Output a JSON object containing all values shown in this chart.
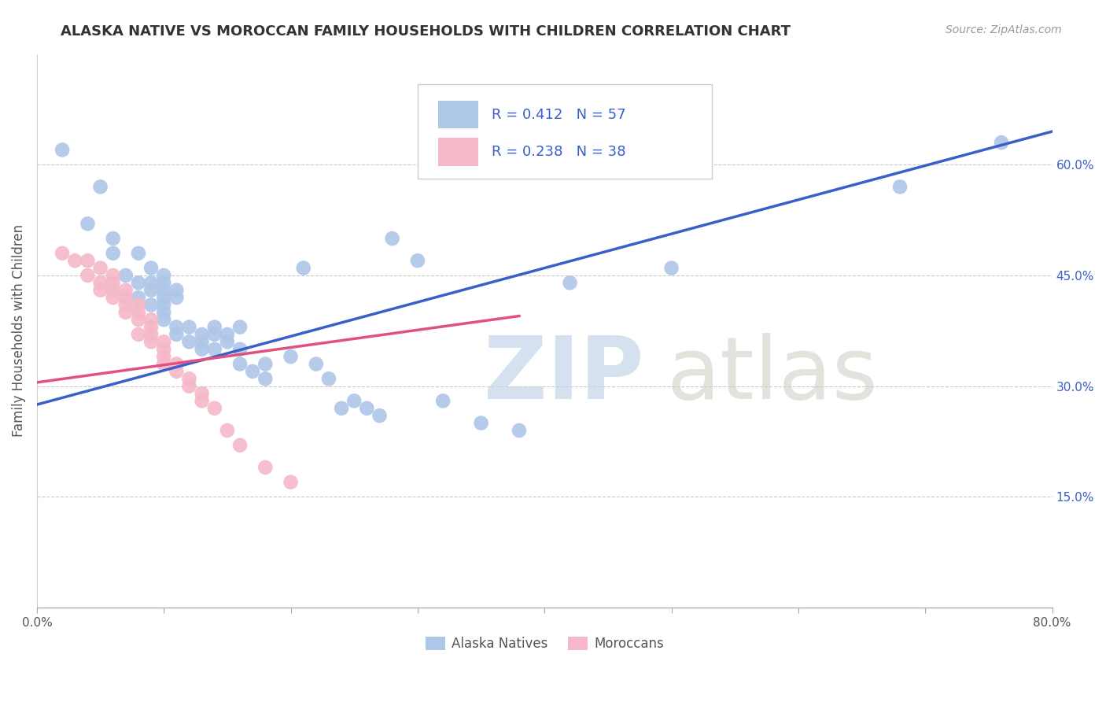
{
  "title": "ALASKA NATIVE VS MOROCCAN FAMILY HOUSEHOLDS WITH CHILDREN CORRELATION CHART",
  "source": "Source: ZipAtlas.com",
  "ylabel": "Family Households with Children",
  "xlim": [
    0.0,
    0.8
  ],
  "ylim": [
    0.0,
    0.75
  ],
  "x_ticks": [
    0.0,
    0.1,
    0.2,
    0.3,
    0.4,
    0.5,
    0.6,
    0.7,
    0.8
  ],
  "y_ticks_right": [
    0.15,
    0.3,
    0.45,
    0.6
  ],
  "y_tick_labels_right": [
    "15.0%",
    "30.0%",
    "45.0%",
    "60.0%"
  ],
  "alaska_R": 0.412,
  "alaska_N": 57,
  "moroccan_R": 0.238,
  "moroccan_N": 38,
  "alaska_color": "#aec6e8",
  "moroccan_color": "#f5b8c8",
  "alaska_line_color": "#3a5fc8",
  "moroccan_line_color": "#e05080",
  "alaska_scatter": [
    [
      0.02,
      0.62
    ],
    [
      0.05,
      0.57
    ],
    [
      0.04,
      0.52
    ],
    [
      0.06,
      0.5
    ],
    [
      0.06,
      0.48
    ],
    [
      0.08,
      0.48
    ],
    [
      0.07,
      0.45
    ],
    [
      0.09,
      0.46
    ],
    [
      0.08,
      0.44
    ],
    [
      0.09,
      0.44
    ],
    [
      0.1,
      0.45
    ],
    [
      0.1,
      0.44
    ],
    [
      0.1,
      0.43
    ],
    [
      0.1,
      0.42
    ],
    [
      0.09,
      0.43
    ],
    [
      0.11,
      0.43
    ],
    [
      0.11,
      0.42
    ],
    [
      0.08,
      0.42
    ],
    [
      0.09,
      0.41
    ],
    [
      0.1,
      0.41
    ],
    [
      0.1,
      0.4
    ],
    [
      0.1,
      0.39
    ],
    [
      0.11,
      0.38
    ],
    [
      0.11,
      0.37
    ],
    [
      0.12,
      0.38
    ],
    [
      0.13,
      0.37
    ],
    [
      0.12,
      0.36
    ],
    [
      0.13,
      0.36
    ],
    [
      0.14,
      0.38
    ],
    [
      0.14,
      0.37
    ],
    [
      0.13,
      0.35
    ],
    [
      0.14,
      0.35
    ],
    [
      0.15,
      0.37
    ],
    [
      0.16,
      0.38
    ],
    [
      0.15,
      0.36
    ],
    [
      0.16,
      0.35
    ],
    [
      0.16,
      0.33
    ],
    [
      0.17,
      0.32
    ],
    [
      0.18,
      0.33
    ],
    [
      0.18,
      0.31
    ],
    [
      0.2,
      0.34
    ],
    [
      0.21,
      0.46
    ],
    [
      0.22,
      0.33
    ],
    [
      0.23,
      0.31
    ],
    [
      0.24,
      0.27
    ],
    [
      0.25,
      0.28
    ],
    [
      0.26,
      0.27
    ],
    [
      0.28,
      0.5
    ],
    [
      0.3,
      0.47
    ],
    [
      0.27,
      0.26
    ],
    [
      0.32,
      0.28
    ],
    [
      0.35,
      0.25
    ],
    [
      0.38,
      0.24
    ],
    [
      0.42,
      0.44
    ],
    [
      0.5,
      0.46
    ],
    [
      0.68,
      0.57
    ],
    [
      0.76,
      0.63
    ]
  ],
  "moroccan_scatter": [
    [
      0.02,
      0.48
    ],
    [
      0.03,
      0.47
    ],
    [
      0.04,
      0.47
    ],
    [
      0.04,
      0.45
    ],
    [
      0.05,
      0.46
    ],
    [
      0.05,
      0.44
    ],
    [
      0.06,
      0.45
    ],
    [
      0.06,
      0.44
    ],
    [
      0.05,
      0.43
    ],
    [
      0.06,
      0.43
    ],
    [
      0.06,
      0.42
    ],
    [
      0.07,
      0.43
    ],
    [
      0.07,
      0.42
    ],
    [
      0.07,
      0.41
    ],
    [
      0.07,
      0.4
    ],
    [
      0.08,
      0.41
    ],
    [
      0.08,
      0.4
    ],
    [
      0.08,
      0.39
    ],
    [
      0.09,
      0.39
    ],
    [
      0.09,
      0.38
    ],
    [
      0.08,
      0.37
    ],
    [
      0.09,
      0.37
    ],
    [
      0.09,
      0.36
    ],
    [
      0.1,
      0.36
    ],
    [
      0.1,
      0.35
    ],
    [
      0.1,
      0.34
    ],
    [
      0.1,
      0.33
    ],
    [
      0.11,
      0.33
    ],
    [
      0.11,
      0.32
    ],
    [
      0.12,
      0.31
    ],
    [
      0.12,
      0.3
    ],
    [
      0.13,
      0.29
    ],
    [
      0.13,
      0.28
    ],
    [
      0.14,
      0.27
    ],
    [
      0.15,
      0.24
    ],
    [
      0.16,
      0.22
    ],
    [
      0.18,
      0.19
    ],
    [
      0.2,
      0.17
    ]
  ],
  "alaska_trendline_x": [
    0.0,
    0.8
  ],
  "alaska_trendline_y": [
    0.275,
    0.645
  ],
  "moroccan_trendline_x": [
    0.0,
    0.38
  ],
  "moroccan_trendline_y": [
    0.305,
    0.395
  ],
  "ref_line_x": [
    0.0,
    0.8
  ],
  "ref_line_y": [
    0.275,
    0.645
  ],
  "legend_text_color": "#3a5fc8",
  "title_fontsize": 13,
  "source_fontsize": 10,
  "scatter_size": 180
}
